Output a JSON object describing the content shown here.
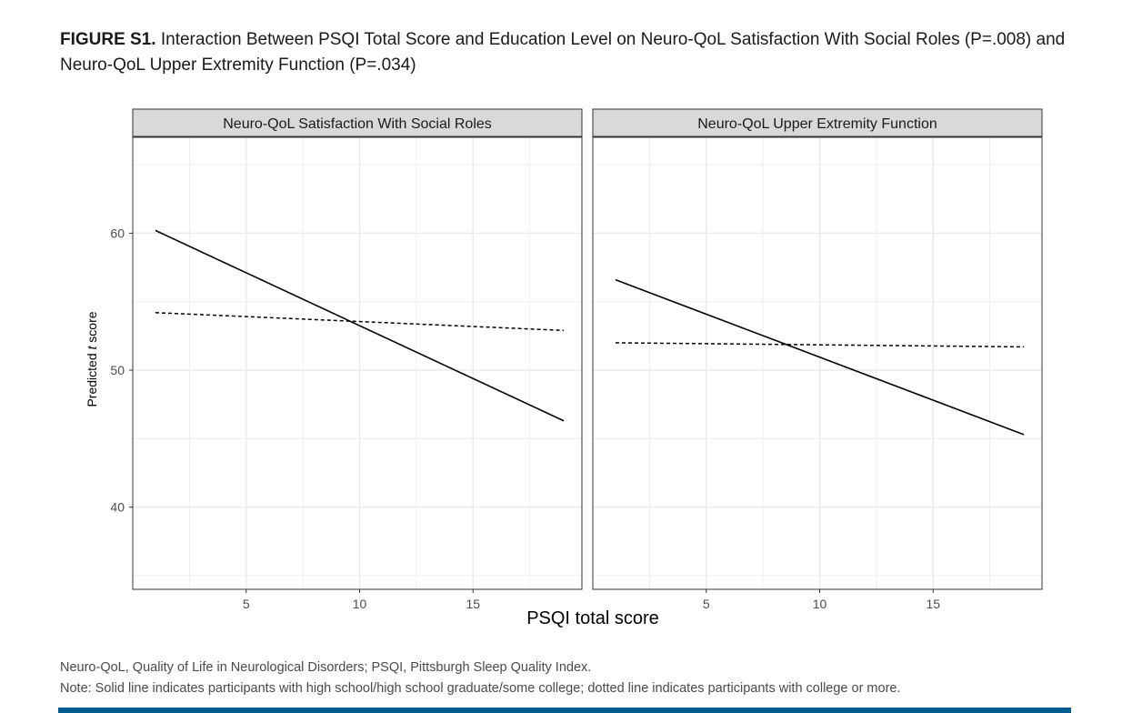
{
  "figure": {
    "label": "FIGURE S1.",
    "title": "Interaction Between PSQI Total Score and Education Level on Neuro-QoL Satisfaction With Social Roles (P=.008) and Neuro-QoL Upper Extremity Function (P=.034)"
  },
  "footnotes": {
    "abbreviations": "Neuro-QoL, Quality of Life in Neurological Disorders; PSQI, Pittsburgh Sleep Quality Index.",
    "note": "Note: Solid line indicates participants with high school/high school graduate/some college; dotted line indicates participants with college or more."
  },
  "colors": {
    "strip_fill": "#d9d9d9",
    "grid": "#ebebeb",
    "line": "#000000",
    "brand_rule": "#005b8e"
  },
  "chart_data": {
    "type": "line",
    "xlabel": "PSQI total score",
    "ylabel_prefix": "Predicted ",
    "ylabel_italic": "t",
    "ylabel_suffix": " score",
    "xlim": [
      0,
      19.8
    ],
    "ylim": [
      34,
      67
    ],
    "x_ticks": [
      5,
      10,
      15
    ],
    "y_ticks": [
      40,
      50,
      60
    ],
    "grid": true,
    "panels": [
      {
        "title": "Neuro-QoL Satisfaction With Social Roles",
        "series": [
          {
            "name": "High school/high school graduate/some college",
            "style": "solid",
            "x": [
              1,
              19
            ],
            "y": [
              60.2,
              46.3
            ]
          },
          {
            "name": "College or more",
            "style": "dotted",
            "x": [
              1,
              19
            ],
            "y": [
              54.2,
              52.9
            ]
          }
        ]
      },
      {
        "title": "Neuro-QoL Upper Extremity Function",
        "series": [
          {
            "name": "High school/high school graduate/some college",
            "style": "solid",
            "x": [
              1,
              19
            ],
            "y": [
              56.6,
              45.3
            ]
          },
          {
            "name": "College or more",
            "style": "dotted",
            "x": [
              1,
              19
            ],
            "y": [
              52.0,
              51.7
            ]
          }
        ]
      }
    ]
  }
}
